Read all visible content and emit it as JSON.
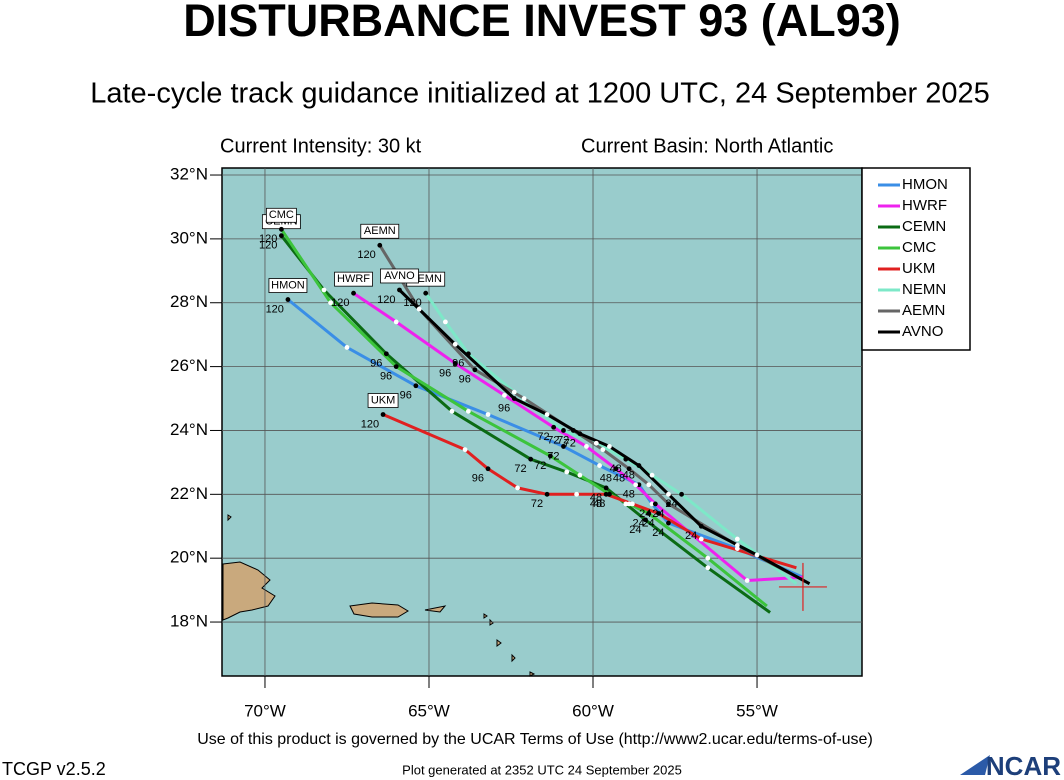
{
  "chart_data": {
    "type": "track",
    "title": "DISTURBANCE INVEST 93 (AL93)",
    "subtitle": "Late-cycle track guidance initialized at 1200 UTC, 24 September 2025",
    "intensity": "Current Intensity: 30 kt",
    "basin": "Current Basin: North Atlantic",
    "footer": "Use of this product is governed by the UCAR Terms of Use (http://www2.ucar.edu/terms-of-use)",
    "version": "TCGP v2.5.2",
    "generated": "Plot generated at 2352 UTC   24 September 2025",
    "logo": "NCAR",
    "xlim": [
      -71.31,
      -51.8
    ],
    "ylim": [
      16.31,
      32.22
    ],
    "xticks": [
      {
        "value": -70,
        "label": "70°W"
      },
      {
        "value": -65,
        "label": "65°W"
      },
      {
        "value": -60,
        "label": "60°W"
      },
      {
        "value": -55,
        "label": "55°W"
      }
    ],
    "yticks": [
      {
        "value": 18,
        "label": "18°N"
      },
      {
        "value": 20,
        "label": "20°N"
      },
      {
        "value": 22,
        "label": "22°N"
      },
      {
        "value": 24,
        "label": "24°N"
      },
      {
        "value": 26,
        "label": "26°N"
      },
      {
        "value": 28,
        "label": "28°N"
      },
      {
        "value": 30,
        "label": "30°N"
      },
      {
        "value": 32,
        "label": "32°N"
      }
    ],
    "grid": true,
    "current_position": {
      "x": -53.6,
      "y": 19.1
    },
    "hour_labels": [
      null,
      null,
      24,
      null,
      48,
      null,
      72,
      null,
      96,
      null,
      120
    ],
    "series": [
      {
        "name": "HMON",
        "color": "#3a8ee6",
        "x": [
          -53.6,
          -55.6,
          -57.7,
          -58.2,
          -58.6,
          -59.8,
          -60.9,
          -63.2,
          -65.4,
          -67.5,
          -69.3
        ],
        "y": [
          19.4,
          20.3,
          21.1,
          21.7,
          22.3,
          22.9,
          23.5,
          24.5,
          25.4,
          26.6,
          28.1
        ]
      },
      {
        "name": "HWRF",
        "color": "#ee22ee",
        "x": [
          -53.6,
          -55.3,
          -58.1,
          -58.7,
          -59.3,
          -60.2,
          -61.2,
          -62.7,
          -64.2,
          -66.0,
          -67.3
        ],
        "y": [
          19.4,
          19.3,
          21.7,
          22.3,
          22.8,
          23.5,
          24.1,
          25.1,
          26.1,
          27.4,
          28.3
        ]
      },
      {
        "name": "CEMN",
        "color": "#0b6b14",
        "x": [
          -54.6,
          -56.5,
          -58.4,
          -59.0,
          -59.6,
          -60.8,
          -61.9,
          -64.3,
          -66.3,
          -68.2,
          -69.5
        ],
        "y": [
          18.3,
          19.7,
          21.2,
          21.7,
          22.2,
          22.7,
          23.1,
          24.6,
          26.4,
          28.4,
          30.1
        ]
      },
      {
        "name": "CMC",
        "color": "#3cc43c",
        "x": [
          -54.7,
          -56.5,
          -58.3,
          -58.9,
          -59.5,
          -60.4,
          -61.3,
          -63.8,
          -66.0,
          -68.0,
          -69.5
        ],
        "y": [
          18.5,
          20.0,
          21.4,
          21.7,
          22.0,
          22.6,
          23.2,
          24.6,
          26.0,
          28.0,
          30.3
        ]
      },
      {
        "name": "UKM",
        "color": "#e02020",
        "x": [
          -53.8,
          -56.7,
          -58.0,
          -58.8,
          -59.6,
          -60.5,
          -61.4,
          -62.3,
          -63.2,
          -63.9,
          -66.4
        ],
        "y": [
          19.7,
          20.6,
          21.4,
          21.7,
          22.0,
          22.0,
          22.0,
          22.2,
          22.8,
          23.4,
          24.5
        ]
      },
      {
        "name": "NEMN",
        "color": "#7de8c8",
        "x": [
          -53.8,
          -55.6,
          -57.3,
          -58.2,
          -59.0,
          -59.9,
          -60.9,
          -62.4,
          -63.8,
          -64.5,
          -65.1
        ],
        "y": [
          19.2,
          20.6,
          22.0,
          22.6,
          23.1,
          23.6,
          24.0,
          25.2,
          26.4,
          27.4,
          28.3
        ]
      },
      {
        "name": "AEMN",
        "color": "#666666",
        "x": [
          -53.4,
          -55.6,
          -57.7,
          -58.3,
          -58.9,
          -59.7,
          -60.6,
          -62.1,
          -63.6,
          -65.3,
          -66.5
        ],
        "y": [
          19.2,
          20.4,
          21.7,
          22.3,
          22.8,
          23.4,
          24.0,
          25.0,
          25.9,
          27.8,
          29.8
        ]
      },
      {
        "name": "AVNO",
        "color": "#000000",
        "x": [
          -53.4,
          -55.0,
          -56.7,
          -57.7,
          -58.6,
          -59.5,
          -60.4,
          -61.4,
          -62.4,
          -64.2,
          -65.9
        ],
        "y": [
          19.2,
          20.1,
          21.0,
          22.0,
          22.9,
          23.5,
          23.9,
          24.5,
          25.0,
          26.7,
          28.4
        ]
      }
    ]
  }
}
